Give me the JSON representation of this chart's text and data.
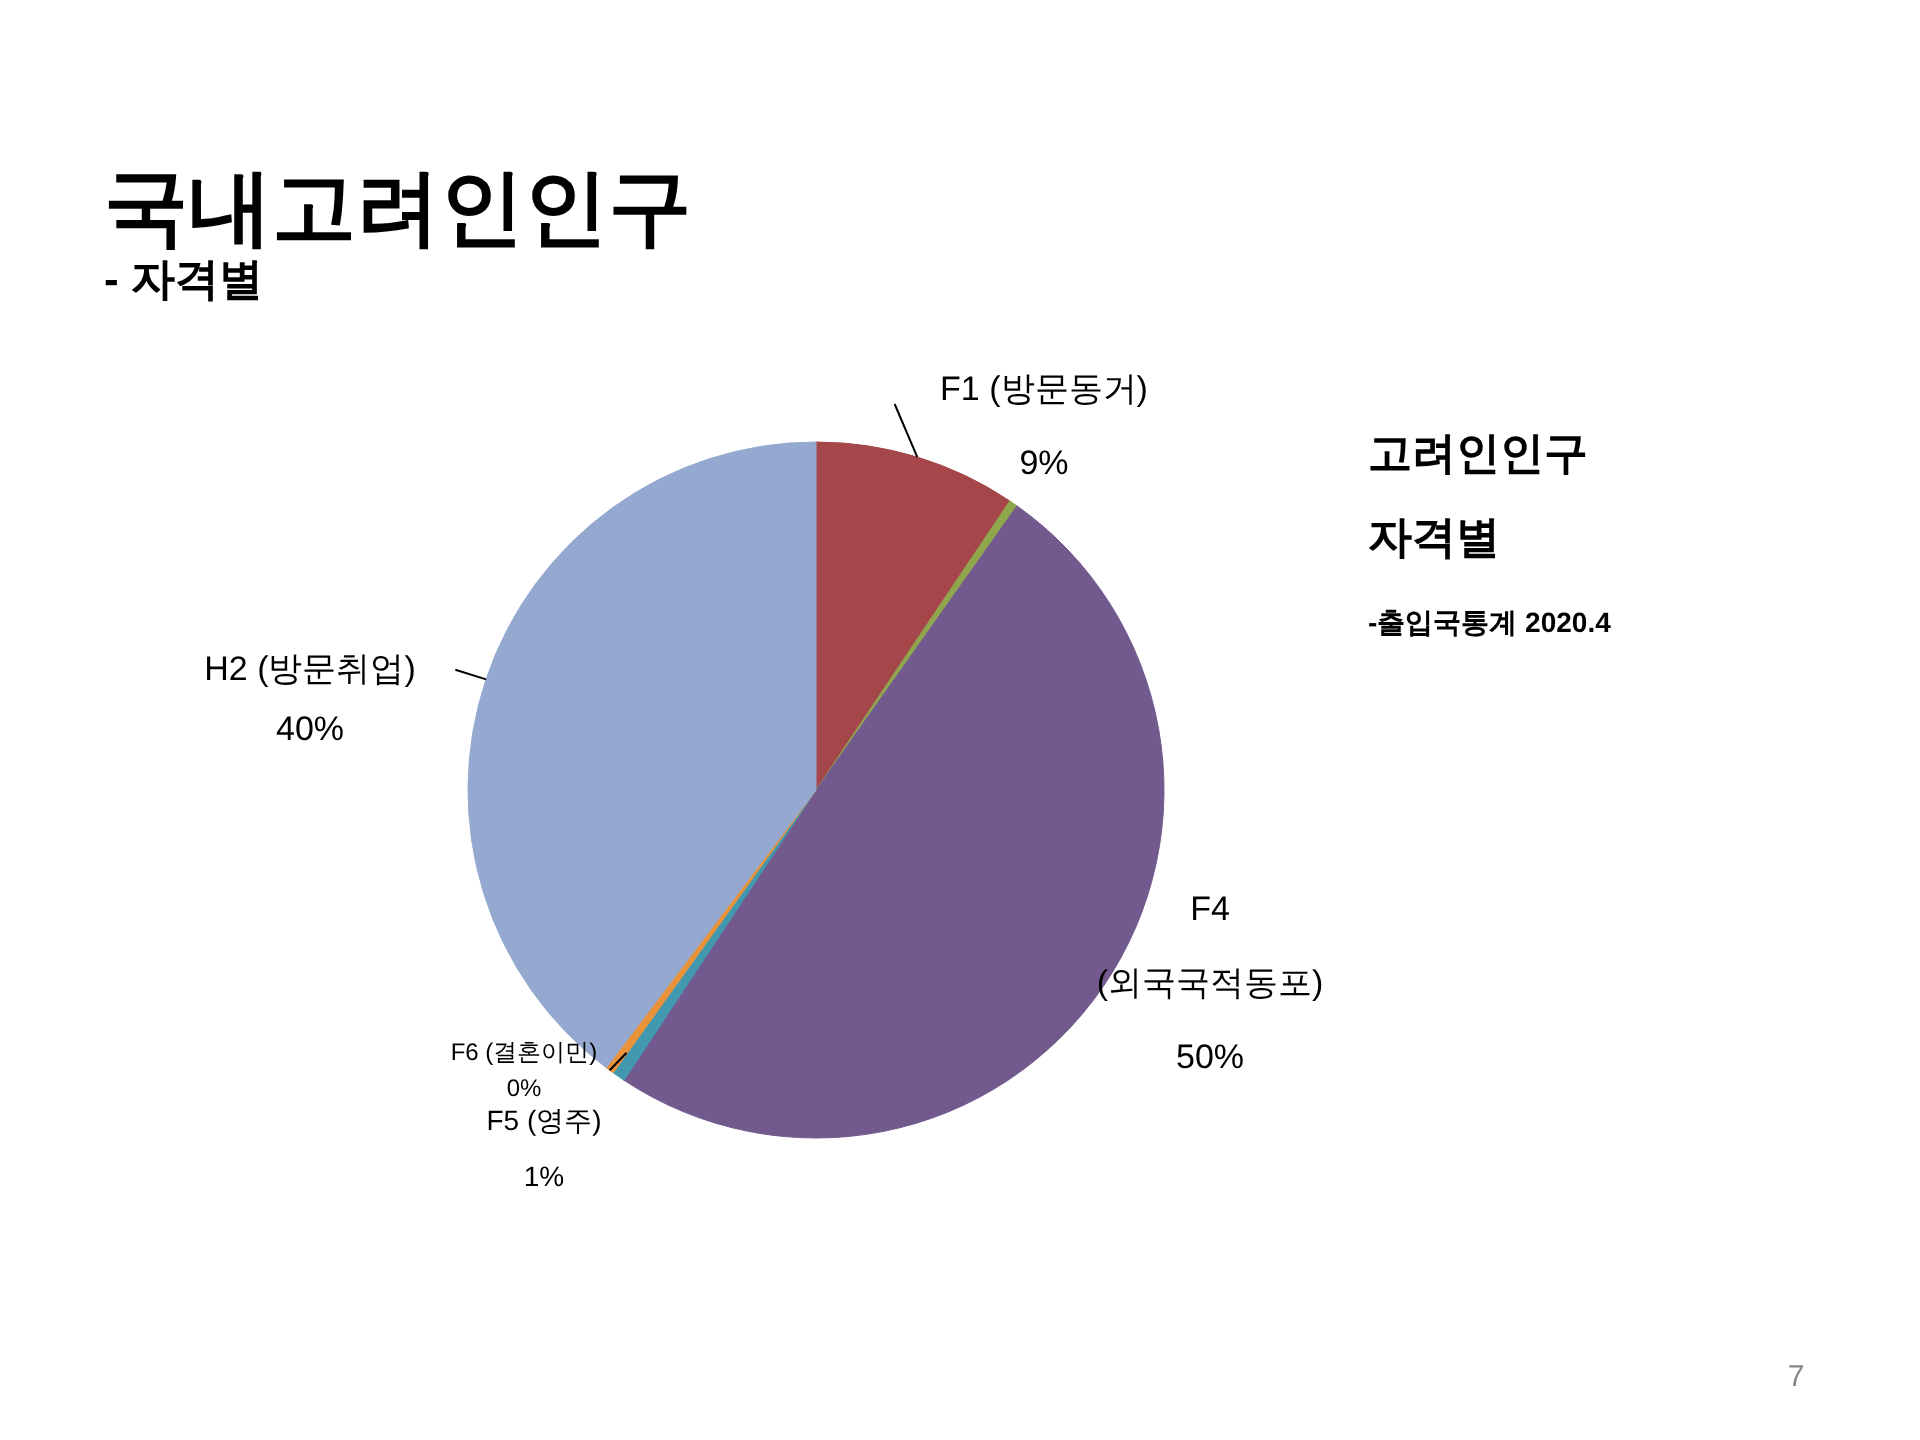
{
  "chart_data": {
    "type": "pie",
    "title": "국내고려인인구",
    "subtitle": "- 자격별",
    "categories": [
      "F1 (방문동거)",
      null,
      "F4 (외국국적동포)",
      "F5 (영주)",
      "F6 (결혼이민)",
      "H2 (방문취업)"
    ],
    "values": [
      9.4,
      0.4,
      49.5,
      0.6,
      0.4,
      39.7
    ],
    "value_labels": [
      "9%",
      null,
      "50%",
      "1%",
      "0%",
      "40%"
    ],
    "colors": [
      "#a5464a",
      "#8fa64c",
      "#735a8e",
      "#4198af",
      "#e8923a",
      "#95a9d0"
    ],
    "annotations": [
      "고려인인구",
      "자격별",
      "-출입국통계 2020.4",
      "7"
    ]
  }
}
